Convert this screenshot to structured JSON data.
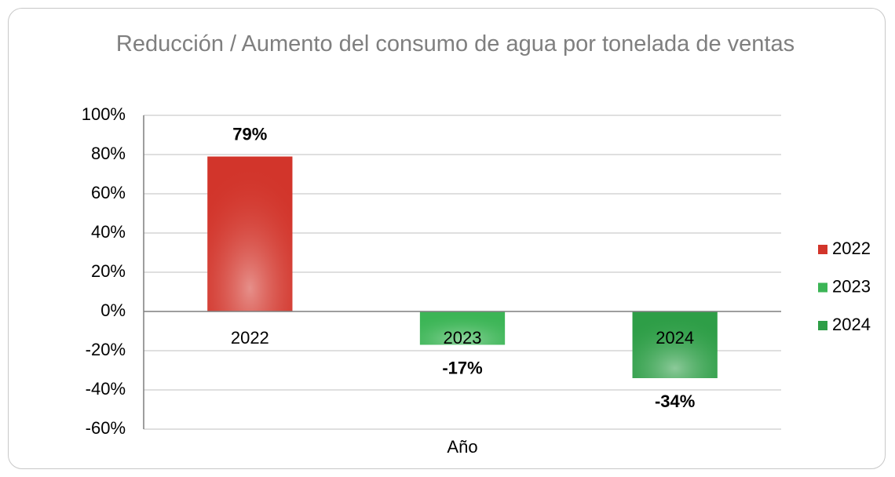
{
  "chart_data": {
    "type": "bar",
    "title": "Reducción / Aumento del consumo de agua por tonelada de ventas",
    "x_label": "Año",
    "categories": [
      "2022",
      "2023",
      "2024"
    ],
    "values": [
      79,
      -17,
      -34
    ],
    "value_labels": [
      "79%",
      "-17%",
      "-34%"
    ],
    "colors": [
      "#d2352b",
      "#3cb556",
      "#2e9e47"
    ],
    "ylim": [
      -60,
      100
    ],
    "yticks": [
      {
        "value": -60,
        "label": "-60%"
      },
      {
        "value": -40,
        "label": "-40%"
      },
      {
        "value": -20,
        "label": "-20%"
      },
      {
        "value": 0,
        "label": "0%"
      },
      {
        "value": 20,
        "label": "20%"
      },
      {
        "value": 40,
        "label": "40%"
      },
      {
        "value": 60,
        "label": "60%"
      },
      {
        "value": 80,
        "label": "80%"
      },
      {
        "value": 100,
        "label": "100%"
      }
    ],
    "grid": true,
    "legend": "right"
  }
}
